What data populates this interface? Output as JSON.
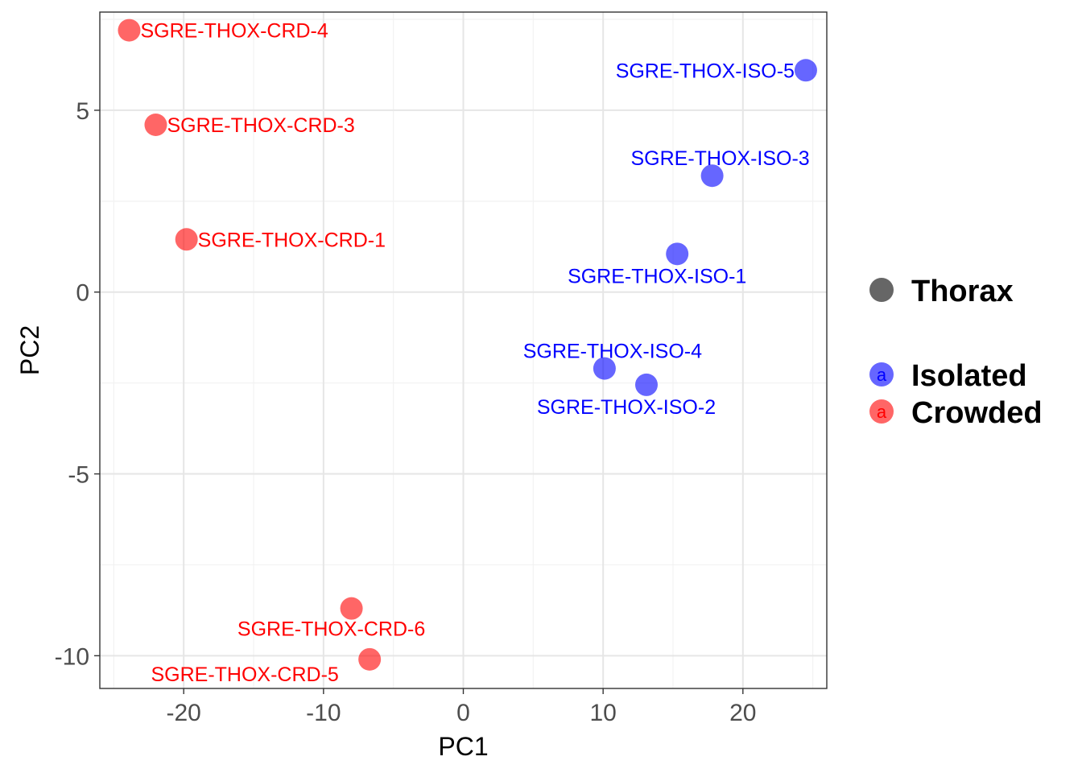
{
  "chart_data": {
    "type": "scatter",
    "xlabel": "PC1",
    "ylabel": "PC2",
    "xlim": [
      -26.0,
      26.0
    ],
    "ylim": [
      -10.9,
      7.7
    ],
    "x_ticks": [
      -20,
      -10,
      0,
      10,
      20
    ],
    "x_tick_labels": [
      "-20",
      "-10",
      "0",
      "10",
      "20"
    ],
    "y_ticks": [
      -10,
      -5,
      0,
      5
    ],
    "y_tick_labels": [
      "-10",
      "-5",
      "0",
      "5"
    ],
    "grid": true,
    "legend": {
      "placement": "right",
      "shape_title": "Thorax",
      "shape_color": "#666666",
      "groups": [
        {
          "name": "Isolated",
          "color": "#0000ff",
          "key_letter": "a"
        },
        {
          "name": "Crowded",
          "color": "#ff0000",
          "key_letter": "a"
        }
      ]
    },
    "series": [
      {
        "name": "Isolated",
        "color": "#0000ff",
        "points": [
          {
            "label": "SGRE-THOX-ISO-5",
            "x": 24.5,
            "y": 6.1,
            "label_anchor": "left"
          },
          {
            "label": "SGRE-THOX-ISO-3",
            "x": 17.8,
            "y": 3.2,
            "label_anchor": "above"
          },
          {
            "label": "SGRE-THOX-ISO-1",
            "x": 15.3,
            "y": 1.05,
            "label_anchor": "below"
          },
          {
            "label": "SGRE-THOX-ISO-4",
            "x": 10.1,
            "y": -2.1,
            "label_anchor": "above"
          },
          {
            "label": "SGRE-THOX-ISO-2",
            "x": 13.1,
            "y": -2.55,
            "label_anchor": "below"
          }
        ]
      },
      {
        "name": "Crowded",
        "color": "#ff0000",
        "points": [
          {
            "label": "SGRE-THOX-CRD-4",
            "x": -23.9,
            "y": 7.2,
            "label_anchor": "right"
          },
          {
            "label": "SGRE-THOX-CRD-3",
            "x": -22.0,
            "y": 4.6,
            "label_anchor": "right"
          },
          {
            "label": "SGRE-THOX-CRD-1",
            "x": -19.8,
            "y": 1.45,
            "label_anchor": "right"
          },
          {
            "label": "SGRE-THOX-CRD-6",
            "x": -8.0,
            "y": -8.7,
            "label_anchor": "below"
          },
          {
            "label": "SGRE-THOX-CRD-5",
            "x": -6.7,
            "y": -10.1,
            "label_anchor": "below-left"
          }
        ]
      }
    ]
  }
}
